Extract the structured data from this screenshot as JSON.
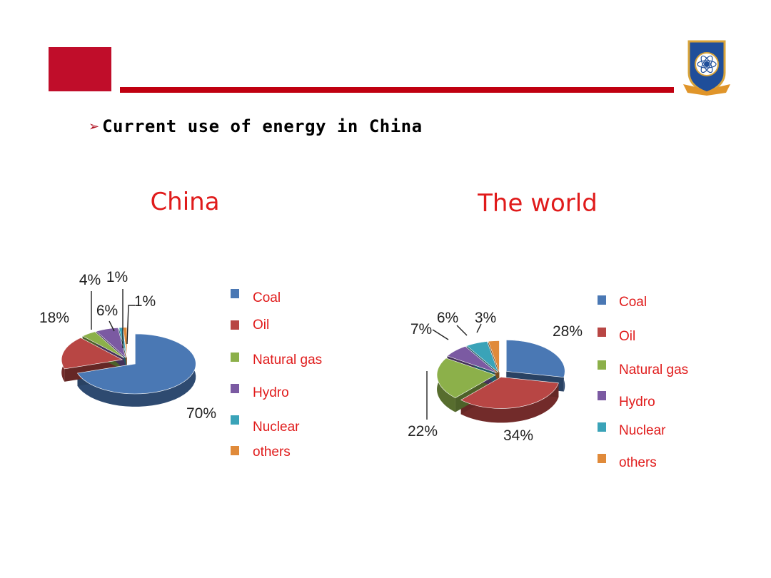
{
  "slide": {
    "heading": "Current use of energy in China",
    "bullet_icon": "arrowhead-bullet-icon",
    "logo_icon": "university-crest-icon",
    "accent_color": "#c00d2a"
  },
  "chart_data": [
    {
      "type": "pie",
      "title": "China",
      "categories": [
        "Coal",
        "Oil",
        "Natural gas",
        "Hydro",
        "Nuclear",
        "others"
      ],
      "values": [
        70,
        18,
        4,
        6,
        1,
        1
      ],
      "value_labels": [
        "70%",
        "18%",
        "4%",
        "6%",
        "1%",
        "1%"
      ],
      "colors": [
        "#4a78b4",
        "#b84644",
        "#8cb04a",
        "#7b5aa2",
        "#3aa3b8",
        "#e08a3a"
      ],
      "legend_position": "right"
    },
    {
      "type": "pie",
      "title": "The world",
      "categories": [
        "Coal",
        "Oil",
        "Natural gas",
        "Hydro",
        "Nuclear",
        "others"
      ],
      "values": [
        28,
        34,
        22,
        7,
        6,
        3
      ],
      "value_labels": [
        "28%",
        "34%",
        "22%",
        "7%",
        "6%",
        "3%"
      ],
      "colors": [
        "#4a78b4",
        "#b84644",
        "#8cb04a",
        "#7b5aa2",
        "#3aa3b8",
        "#e08a3a"
      ],
      "legend_position": "right"
    }
  ]
}
